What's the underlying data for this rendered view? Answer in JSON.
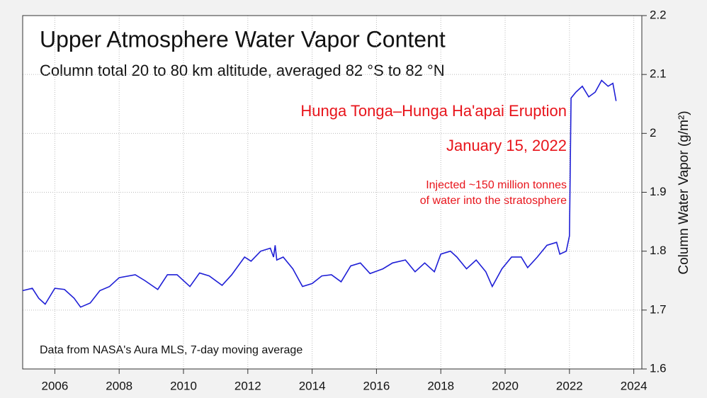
{
  "chart_data": {
    "type": "line",
    "title": "Upper Atmosphere Water Vapor Content",
    "subtitle": "Column total 20 to 80 km altitude, averaged 82 °S to 82 °N",
    "y_label": "Column Water Vapor (g/m²)",
    "annotations": [
      "Hunga Tonga–Hunga Ha'apai Eruption",
      "January 15, 2022",
      "Injected ~150 million tonnes",
      "of water into the stratosphere",
      "Data from NASA's Aura MLS, 7-day moving average"
    ],
    "x": [
      2005.0,
      2005.3,
      2005.5,
      2005.7,
      2006.0,
      2006.3,
      2006.6,
      2006.8,
      2007.1,
      2007.4,
      2007.7,
      2008.0,
      2008.5,
      2008.8,
      2009.2,
      2009.5,
      2009.8,
      2010.2,
      2010.5,
      2010.8,
      2011.2,
      2011.5,
      2011.9,
      2012.1,
      2012.4,
      2012.7,
      2012.8,
      2012.85,
      2012.9,
      2013.1,
      2013.4,
      2013.7,
      2014.0,
      2014.3,
      2014.6,
      2014.9,
      2015.2,
      2015.5,
      2015.8,
      2016.2,
      2016.5,
      2016.9,
      2017.2,
      2017.5,
      2017.8,
      2018.0,
      2018.3,
      2018.5,
      2018.8,
      2019.1,
      2019.4,
      2019.6,
      2019.9,
      2020.2,
      2020.5,
      2020.7,
      2021.0,
      2021.3,
      2021.6,
      2021.7,
      2021.9,
      2022.0,
      2022.05,
      2022.2,
      2022.4,
      2022.6,
      2022.8,
      2023.0,
      2023.2,
      2023.35,
      2023.45
    ],
    "series": [
      {
        "color": "#1f1fd6",
        "values": [
          1.733,
          1.737,
          1.72,
          1.71,
          1.737,
          1.735,
          1.72,
          1.705,
          1.712,
          1.733,
          1.74,
          1.755,
          1.76,
          1.75,
          1.735,
          1.76,
          1.76,
          1.74,
          1.763,
          1.758,
          1.742,
          1.76,
          1.79,
          1.783,
          1.8,
          1.805,
          1.79,
          1.81,
          1.785,
          1.79,
          1.77,
          1.74,
          1.745,
          1.758,
          1.76,
          1.748,
          1.775,
          1.78,
          1.762,
          1.77,
          1.78,
          1.785,
          1.765,
          1.78,
          1.765,
          1.795,
          1.8,
          1.79,
          1.77,
          1.785,
          1.765,
          1.74,
          1.77,
          1.79,
          1.79,
          1.772,
          1.79,
          1.81,
          1.815,
          1.795,
          1.8,
          1.826,
          2.06,
          2.07,
          2.08,
          2.062,
          2.07,
          2.09,
          2.08,
          2.085,
          2.055
        ]
      }
    ],
    "xlim": [
      2005,
      2024.25
    ],
    "xticks": [
      2006,
      2008,
      2010,
      2012,
      2014,
      2016,
      2018,
      2020,
      2022,
      2024
    ],
    "ylim": [
      1.6,
      2.2
    ],
    "yticks": [
      1.6,
      1.7,
      1.8,
      1.9,
      2,
      2.1,
      2.2
    ],
    "y_axis_side": "right",
    "grid": true
  }
}
